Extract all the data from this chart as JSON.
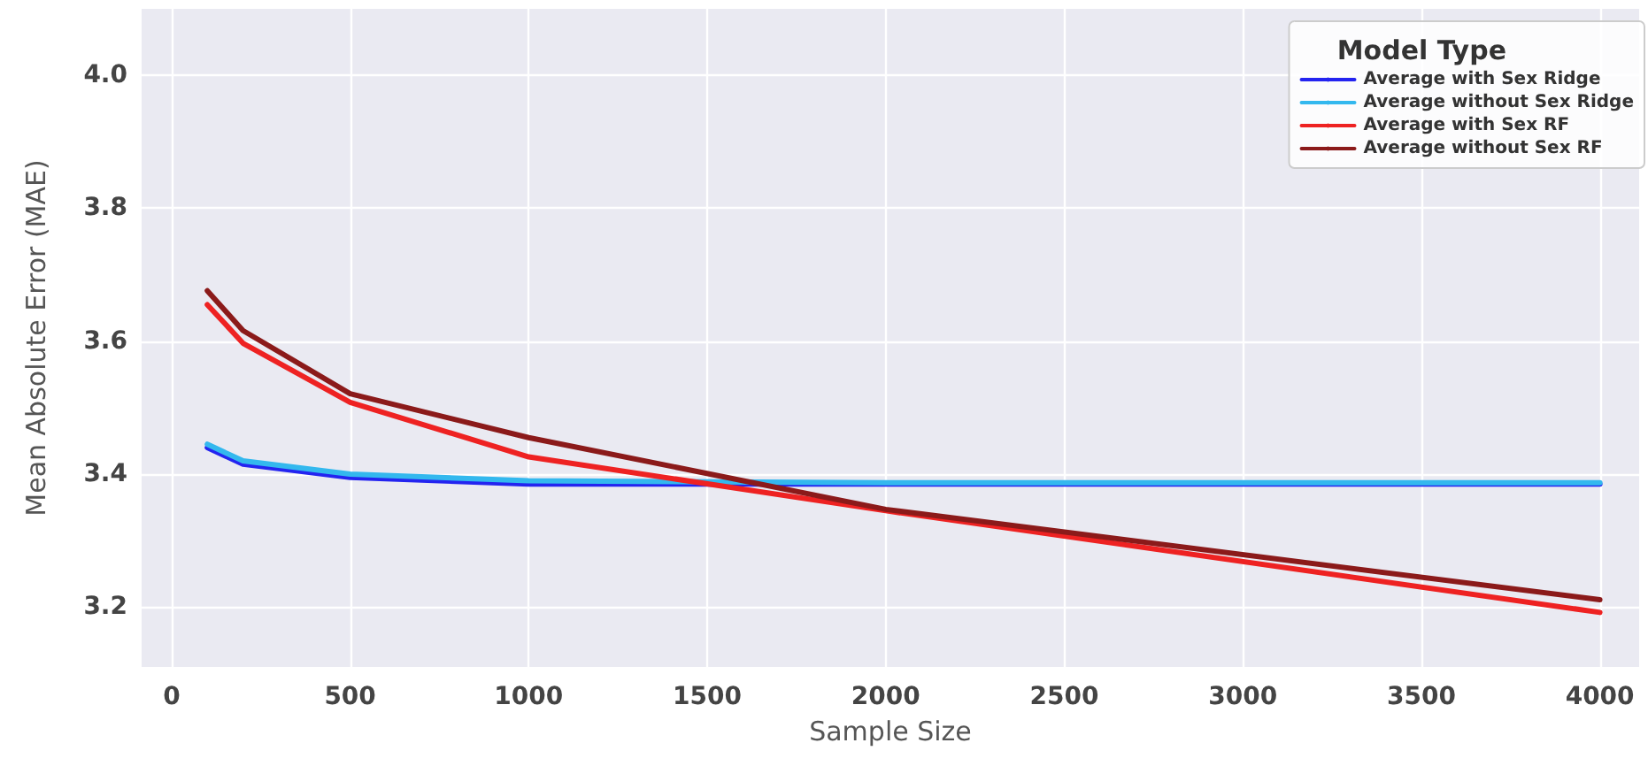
{
  "chart_data": {
    "type": "line",
    "xlabel": "Sample Size",
    "ylabel": "Mean Absolute Error (MAE)",
    "legend_title": "Model Type",
    "x": [
      100,
      200,
      500,
      1000,
      2000,
      4000
    ],
    "series": [
      {
        "name": "Average with Sex Ridge",
        "color": "#2424f0",
        "values": [
          3.44,
          3.415,
          3.395,
          3.385,
          3.385,
          3.385
        ]
      },
      {
        "name": "Average without Sex Ridge",
        "color": "#33b8ee",
        "values": [
          3.445,
          3.42,
          3.4,
          3.39,
          3.387,
          3.387
        ]
      },
      {
        "name": "Average with Sex RF",
        "color": "#ee2222",
        "values": [
          3.655,
          3.597,
          3.508,
          3.426,
          3.345,
          3.192
        ]
      },
      {
        "name": "Average without Sex RF",
        "color": "#8b1a1a",
        "values": [
          3.676,
          3.616,
          3.521,
          3.455,
          3.347,
          3.211
        ]
      }
    ],
    "xlim": [
      -84,
      4110
    ],
    "ylim": [
      3.11,
      4.1
    ],
    "xticks": [
      0,
      500,
      1000,
      1500,
      2000,
      2500,
      3000,
      3500,
      4000
    ],
    "yticks": [
      3.2,
      3.4,
      3.6,
      3.8,
      {
        "value": 4,
        "label": "4.0"
      }
    ],
    "grid": true,
    "legend": "top right",
    "marker": "none",
    "line_style": "solid"
  }
}
